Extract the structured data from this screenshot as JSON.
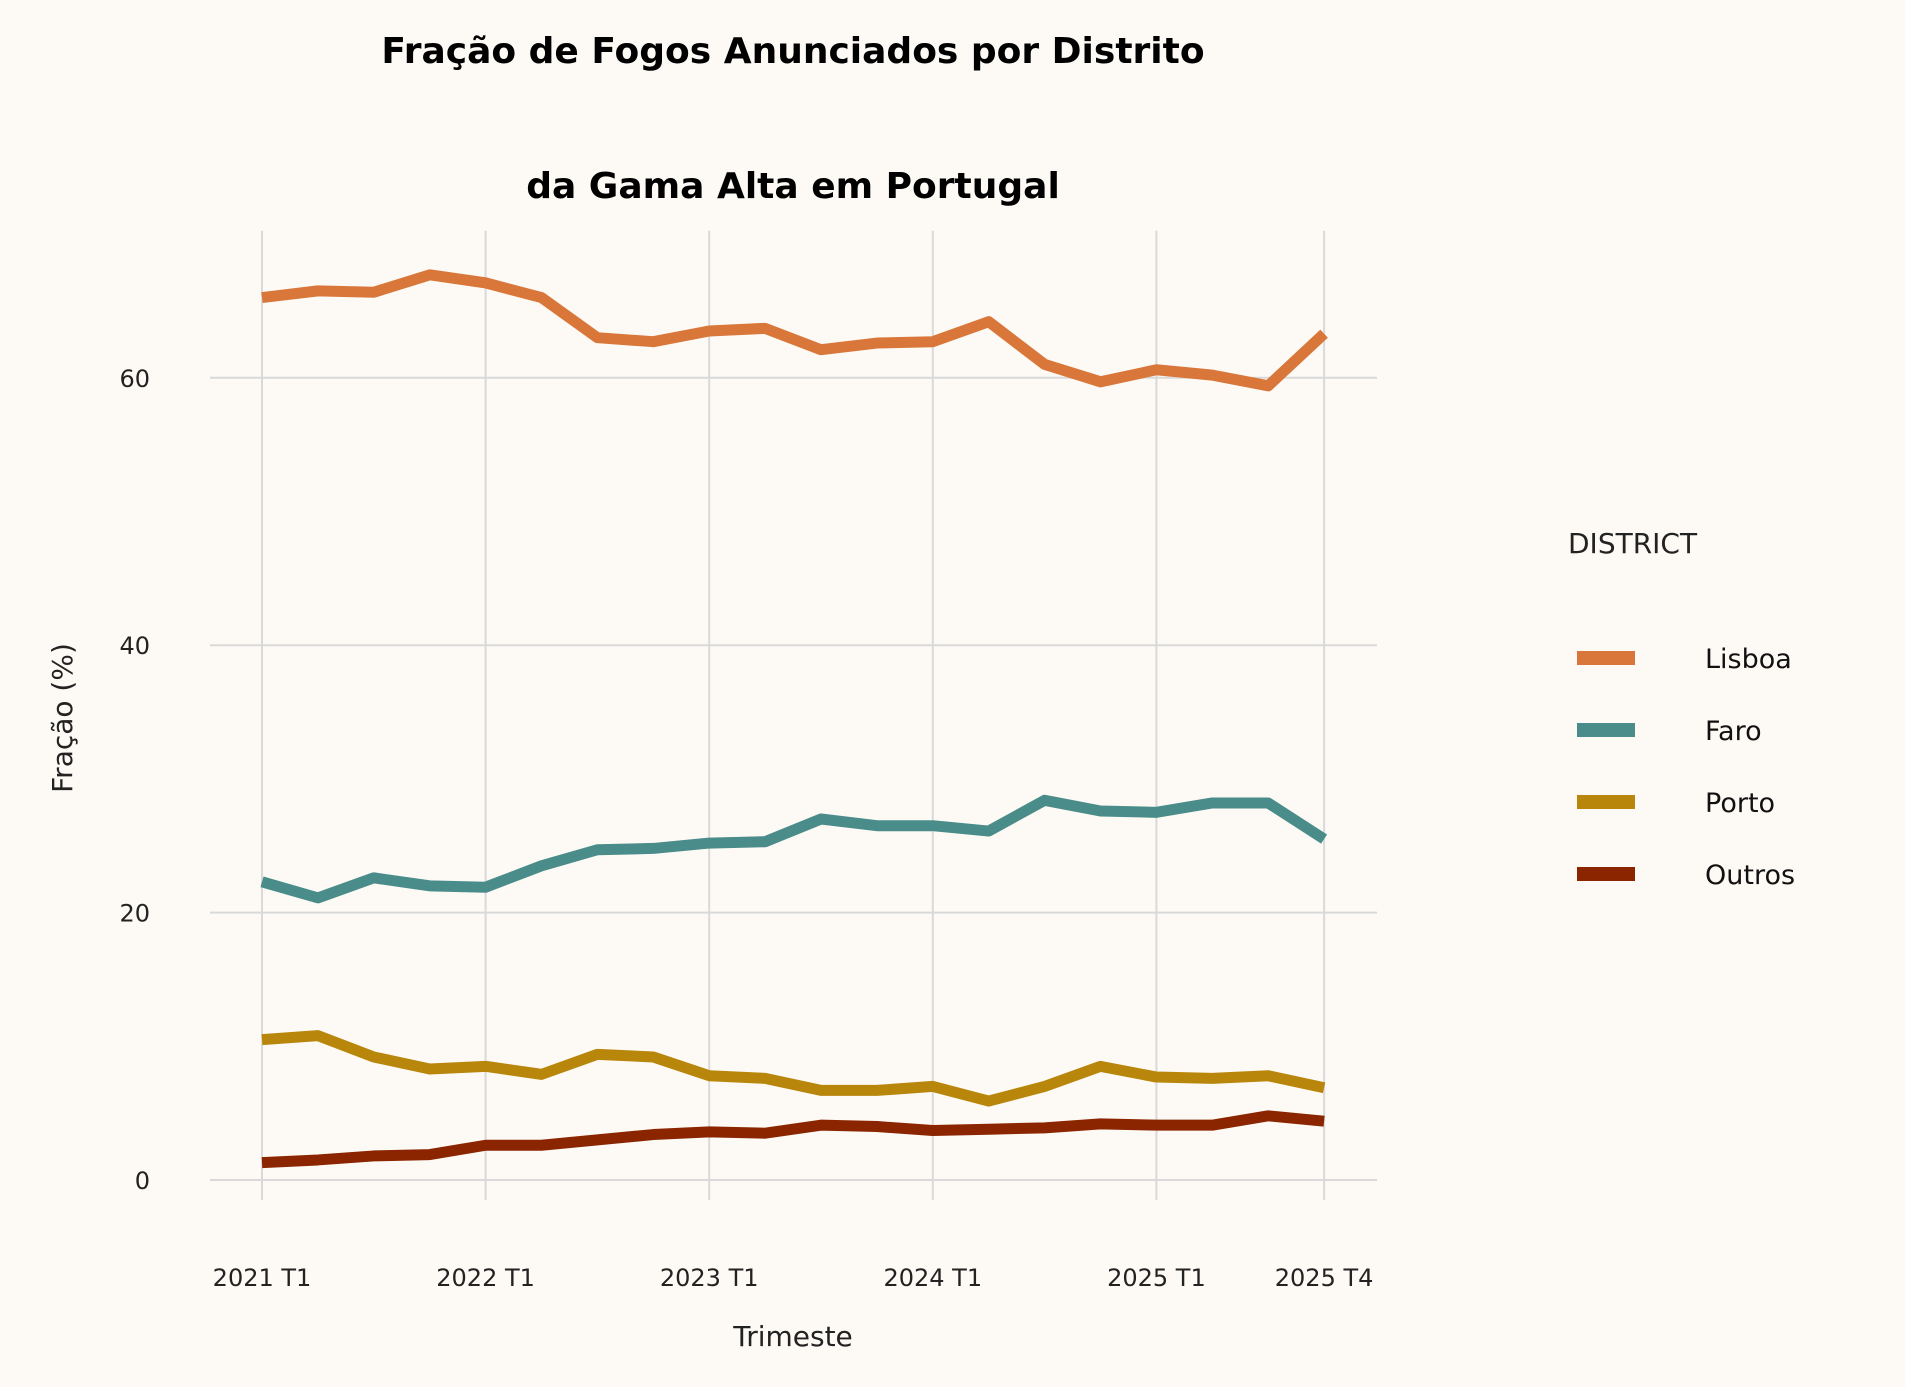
{
  "chart_data": {
    "type": "line",
    "title": "Fração de Fogos Anunciados por Distrito",
    "subtitle": "da Gama Alta em Portugal",
    "xlabel": "Trimeste",
    "ylabel": "Fração (%)",
    "x": [
      "2021 T1",
      "2021 T2",
      "2021 T3",
      "2021 T4",
      "2022 T1",
      "2022 T2",
      "2022 T3",
      "2022 T4",
      "2023 T1",
      "2023 T2",
      "2023 T3",
      "2023 T4",
      "2024 T1",
      "2024 T2",
      "2024 T3",
      "2024 T4",
      "2025 T1",
      "2025 T2",
      "2025 T3",
      "2025 T4"
    ],
    "x_ticks": [
      "2021 T1",
      "2022 T1",
      "2023 T1",
      "2024 T1",
      "2025 T1",
      "2025 T4"
    ],
    "y_ticks": [
      0,
      20,
      40,
      60
    ],
    "ylim": [
      -1.5,
      71
    ],
    "grid": true,
    "legend_title": "DISTRICT",
    "legend_placement": "right",
    "series": [
      {
        "name": "Lisboa",
        "color": "#D9773A",
        "values": [
          66.0,
          66.5,
          66.4,
          67.7,
          67.1,
          66.0,
          63.0,
          62.7,
          63.5,
          63.7,
          62.1,
          62.6,
          62.7,
          64.2,
          61.0,
          59.7,
          60.6,
          60.2,
          59.4,
          63.3
        ]
      },
      {
        "name": "Faro",
        "color": "#4A8C8A",
        "values": [
          22.3,
          21.1,
          22.6,
          22.0,
          21.9,
          23.5,
          24.7,
          24.8,
          25.2,
          25.3,
          27.0,
          26.5,
          26.5,
          26.1,
          28.4,
          27.6,
          27.5,
          28.2,
          28.2,
          25.5
        ]
      },
      {
        "name": "Porto",
        "color": "#B8860B",
        "values": [
          10.5,
          10.8,
          9.2,
          8.3,
          8.5,
          7.9,
          9.4,
          9.2,
          7.8,
          7.6,
          6.7,
          6.7,
          7.0,
          5.9,
          7.0,
          8.5,
          7.7,
          7.6,
          7.8,
          6.9
        ]
      },
      {
        "name": "Outros",
        "color": "#8B2500",
        "values": [
          1.3,
          1.5,
          1.8,
          1.9,
          2.6,
          2.6,
          3.0,
          3.4,
          3.6,
          3.5,
          4.1,
          4.0,
          3.7,
          3.8,
          3.9,
          4.2,
          4.1,
          4.1,
          4.8,
          4.4
        ]
      }
    ]
  }
}
